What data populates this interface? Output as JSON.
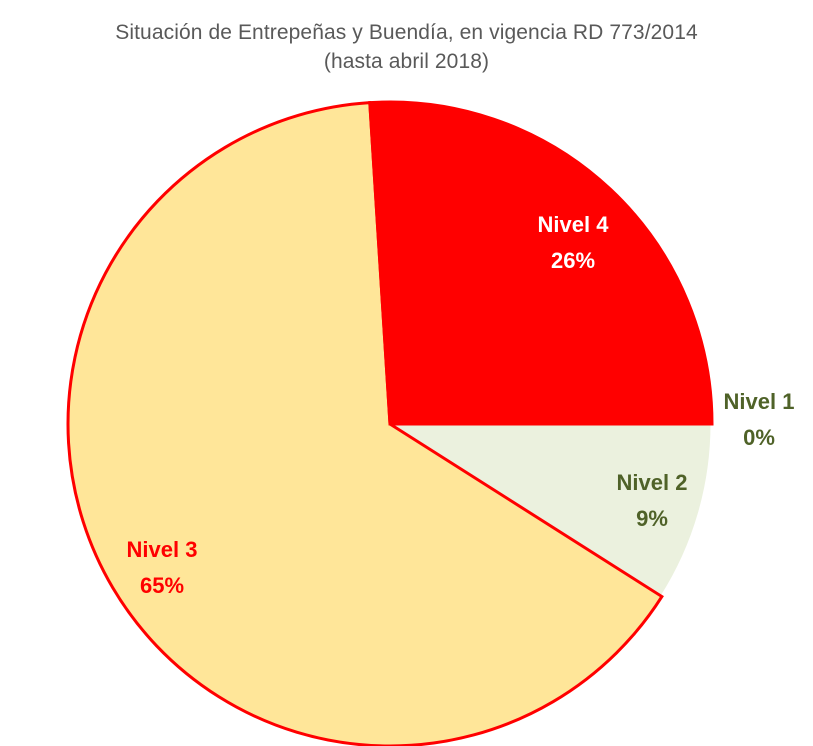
{
  "chart_data": {
    "type": "pie",
    "title": "Situación  de Entrepeñas y Buendía, en vigencia  RD 773/2014",
    "subtitle": "(hasta abril 2018)",
    "slices": [
      {
        "label": "Nivel 1",
        "value": 0,
        "percent_label": "0%",
        "color": "#4f6228",
        "label_color": "#4f6228",
        "stroke": "#ffffff"
      },
      {
        "label": "Nivel 2",
        "value": 9,
        "percent_label": "9%",
        "color": "#ebf1de",
        "label_color": "#4f6228",
        "stroke": "#ffffff"
      },
      {
        "label": "Nivel 3",
        "value": 65,
        "percent_label": "65%",
        "color": "#ffe699",
        "label_color": "#ff0000",
        "stroke": "#ff0000"
      },
      {
        "label": "Nivel 4",
        "value": 26,
        "percent_label": "26%",
        "color": "#ff0000",
        "label_color": "#ffffff",
        "stroke": "#ff0000"
      }
    ],
    "legend": "none"
  }
}
